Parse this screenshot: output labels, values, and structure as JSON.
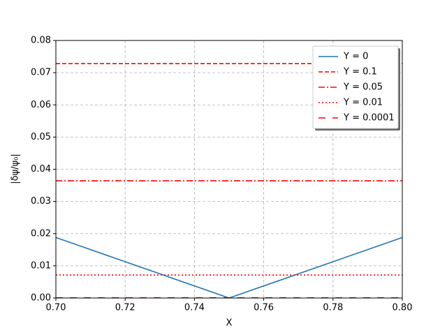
{
  "chart_data": {
    "type": "line",
    "xlabel": "X",
    "ylabel": "|δψ/ψ₀|",
    "xlim": [
      0.7,
      0.8
    ],
    "xticks": [
      {
        "value": 0.7,
        "label": "0.70"
      },
      {
        "value": 0.72,
        "label": "0.72"
      },
      {
        "value": 0.74,
        "label": "0.74"
      },
      {
        "value": 0.76,
        "label": "0.76"
      },
      {
        "value": 0.78,
        "label": "0.78"
      },
      {
        "value": 0.8,
        "label": "0.80"
      }
    ],
    "ylim": [
      0,
      0.08
    ],
    "yticks": [
      {
        "value": 0,
        "label": "0.00"
      },
      {
        "value": 0.01,
        "label": "0.01"
      },
      {
        "value": 0.02,
        "label": "0.02"
      },
      {
        "value": 0.03,
        "label": "0.03"
      },
      {
        "value": 0.04,
        "label": "0.04"
      },
      {
        "value": 0.05,
        "label": "0.05"
      },
      {
        "value": 0.06,
        "label": "0.06"
      },
      {
        "value": 0.07,
        "label": "0.07"
      },
      {
        "value": 0.08,
        "label": "0.08"
      }
    ],
    "grid": true,
    "legend": "upper right",
    "series": [
      {
        "name": "Y = 0",
        "color": "#1f77b4",
        "linestyle": "solid",
        "x": [
          0.7,
          0.75,
          0.8
        ],
        "values": [
          0.0188,
          0,
          0.0188
        ]
      },
      {
        "name": "Y = 0.1",
        "color": "#ff0000",
        "linestyle": "dashed",
        "x": [
          0.7,
          0.8
        ],
        "values": [
          0.0728,
          0.0728
        ]
      },
      {
        "name": "Y = 0.05",
        "color": "#ff0000",
        "linestyle": "dashdot",
        "x": [
          0.7,
          0.8
        ],
        "values": [
          0.0364,
          0.0364
        ]
      },
      {
        "name": "Y = 0.01",
        "color": "#ff0000",
        "linestyle": "dotted",
        "x": [
          0.7,
          0.8
        ],
        "values": [
          0.00715,
          0.00715
        ]
      },
      {
        "name": "Y = 0.0001",
        "color": "#ff0000",
        "linestyle": "longdash",
        "x": [
          0.7,
          0.8
        ],
        "values": [
          7e-05,
          7e-05
        ]
      }
    ]
  }
}
